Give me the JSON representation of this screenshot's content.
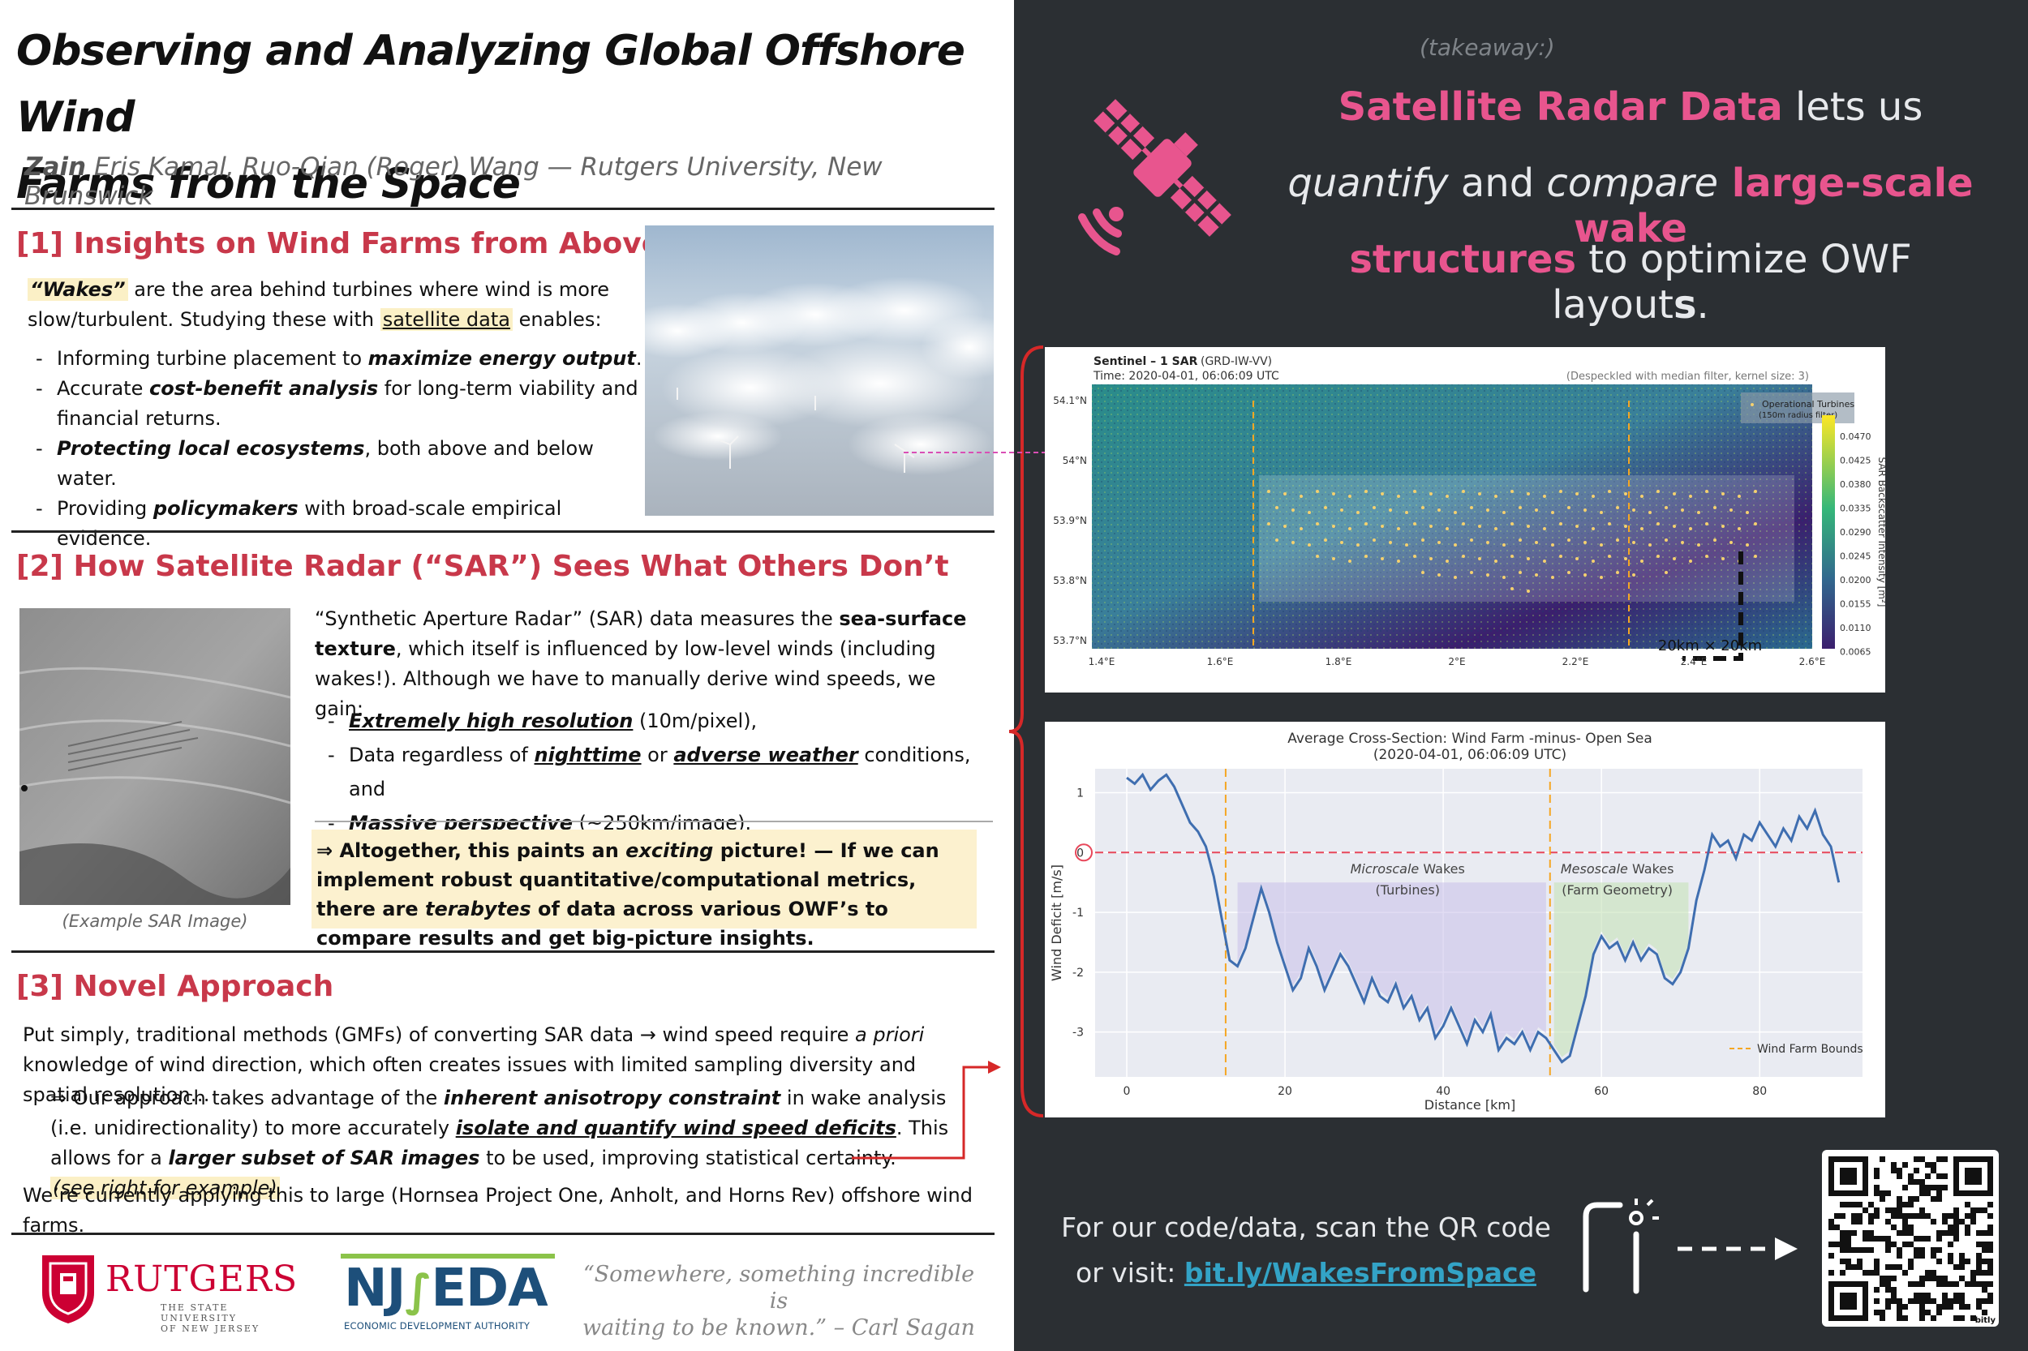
{
  "poster": {
    "title_line1": "Observing and Analyzing Global Offshore Wind",
    "title_line2": "Farms from the Space",
    "authors_lead": "Zain",
    "authors_rest": " Eris Kamal, Ruo-Qian (Roger) Wang — Rutgers University, New Brunswick"
  },
  "section1": {
    "title": "[1] Insights on Wind Farms from Above",
    "wakes_term": "“Wakes”",
    "intro_a": " are the area behind turbines where wind is more",
    "intro_b": "slow/turbulent. Studying these with ",
    "intro_link": "satellite data",
    "intro_c": " enables:",
    "b1_pre": "Informing turbine placement to ",
    "b1_em": "maximize energy output",
    "b1_post": ".",
    "b2_pre": "Accurate ",
    "b2_em": "cost-benefit analysis",
    "b2_post": " for long-term viability and financial returns.",
    "b3_em": "Protecting local ecosystems",
    "b3_post": ", both above and below water.",
    "b4_pre": "Providing ",
    "b4_em": "policymakers",
    "b4_post": " with broad-scale empirical evidence."
  },
  "section2": {
    "title": "[2] How Satellite Radar (“SAR”) Sees What Others Don’t",
    "p1_a": "“Synthetic Aperture Radar” (SAR) data measures the ",
    "p1_b": "sea-surface texture",
    "p1_c": ", which itself is influenced by low-level winds (including wakes!). Although we have to manually derive wind speeds, we gain:",
    "b1_em": "Extremely high resolution",
    "b1_post": " (10m/pixel),",
    "b2_pre": "Data regardless of ",
    "b2_em1": "nighttime",
    "b2_mid": " or ",
    "b2_em2": "adverse weather",
    "b2_post": " conditions, and",
    "b3_em": "Massive perspective",
    "b3_post": " (~250km/image).",
    "caption": "(Example  SAR Image)",
    "box_a": "⇒ Altogether, this paints an ",
    "box_em1": "exciting",
    "box_b": " picture! — If we can implement robust quantitative/computational metrics, there are ",
    "box_em2": "terabytes",
    "box_c": " of data across various OWF’s to compare results and get big-picture insights."
  },
  "section3": {
    "title": "[3] Novel Approach",
    "p1_a": "Put simply, traditional methods (GMFs) of converting SAR data → wind speed require ",
    "p1_em": "a priori",
    "p1_b": " knowledge of wind direction, which often creates issues with limited sampling diversity and spatial resolution…",
    "p2_a": "⇒ Our approach takes advantage of the ",
    "p2_em1": "inherent anisotropy constraint",
    "p2_b": " in wake analysis (i.e. unidirectionality) to more accurately ",
    "p2_em2": "isolate and quantify wind speed deficits",
    "p2_c": ". This allows for a ",
    "p2_em3": "larger subset of SAR images",
    "p2_d": " to be used, improving statistical certainty.",
    "p2_note": "(see right for example)",
    "p3": "We’re currently applying this to large (Hornsea Project One, Anholt, and Horns Rev) offshore wind farms."
  },
  "logos": {
    "rutgers": "RUTGERS",
    "rutgers_sub1": "THE STATE UNIVERSITY",
    "rutgers_sub2": "OF NEW JERSEY",
    "njeda_a": "NJ",
    "njeda_b": "EDA",
    "njeda_sub": "ECONOMIC DEVELOPMENT AUTHORITY"
  },
  "quote": {
    "line1": "“Somewhere, something incredible is",
    "line2": "waiting to be known.” – Carl Sagan"
  },
  "takeaway": {
    "label": "(takeaway:)",
    "l1_em": "Satellite Radar Data",
    "l1_rest": " lets us",
    "l2_em1": "quantify",
    "l2_mid": " and ",
    "l2_em2": "compare",
    "l2_pink": " large-scale wake",
    "l3_pink": "structures",
    "l3_rest": " to optimize OWF layout",
    "l3_s": "s",
    "l3_end": "."
  },
  "contact": {
    "line1": "For our code/data, scan the QR code",
    "line2_pre": "or visit: ",
    "link": "bit.ly/WakesFromSpace",
    "qr_brand": "bitly"
  },
  "sar_map": {
    "title_bold": "Sentinel – 1 SAR",
    "title_rest": " (GRD-IW-VV)",
    "time": "Time: 2020-04-01, 06:06:09 UTC",
    "note": "(Despeckled with median filter, kernel size: 3)",
    "legend1": "Operational Turbines",
    "legend2": "(150m radius filter)",
    "scale": "20km × 20km",
    "colorbar_label": "SAR Backscatter Intensity [m²]",
    "colorbar_ticks": [
      "0.0470",
      "0.0425",
      "0.0380",
      "0.0335",
      "0.0290",
      "0.0245",
      "0.0200",
      "0.0155",
      "0.0110",
      "0.0065"
    ],
    "lat_ticks": [
      "54.1°N",
      "54°N",
      "53.9°N",
      "53.8°N",
      "53.7°N"
    ],
    "lon_ticks": [
      "1.4°E",
      "1.6°E",
      "1.8°E",
      "2°E",
      "2.2°E",
      "2.4°E",
      "2.6°E"
    ],
    "colors": {
      "low": "#3b1f6d",
      "mid": "#2a8c8a",
      "high": "#9ad05a"
    }
  },
  "chart_data": {
    "type": "line",
    "title": "Average Cross-Section: Wind Farm -minus- Open Sea",
    "subtitle": "(2020-04-01, 06:06:09 UTC)",
    "xlabel": "Distance [km]",
    "ylabel": "Wind Deficit [m/s]",
    "xlim": [
      -4,
      93
    ],
    "ylim": [
      -3.75,
      1.4
    ],
    "x_ticks": [
      0,
      20,
      40,
      60,
      80
    ],
    "y_ticks": [
      1,
      0,
      -1,
      -2,
      -3
    ],
    "wind_farm_bounds": [
      12.5,
      53.5
    ],
    "legend": "Wind Farm Bounds",
    "annotations": [
      {
        "em": "Microscale",
        "text": " Wakes",
        "sub": "(Turbines)"
      },
      {
        "em": "Mesoscale",
        "text": " Wakes",
        "sub": "(Farm Geometry)"
      }
    ],
    "series": [
      {
        "color": "#3f6eb0",
        "x": [
          0,
          1,
          2,
          3,
          4,
          5,
          6,
          7,
          8,
          9,
          10,
          11,
          12,
          13,
          14,
          15,
          16,
          17,
          18,
          19,
          20,
          21,
          22,
          23,
          24,
          25,
          26,
          27,
          28,
          29,
          30,
          31,
          32,
          33,
          34,
          35,
          36,
          37,
          38,
          39,
          40,
          41,
          42,
          43,
          44,
          45,
          46,
          47,
          48,
          49,
          50,
          51,
          52,
          53,
          54,
          55,
          56,
          57,
          58,
          59,
          60,
          61,
          62,
          63,
          64,
          65,
          66,
          67,
          68,
          69,
          70,
          71,
          72,
          73,
          74,
          75,
          76,
          77,
          78,
          79,
          80,
          81,
          82,
          83,
          84,
          85,
          86,
          87,
          88,
          89,
          90
        ],
        "values": [
          1.25,
          1.15,
          1.3,
          1.05,
          1.2,
          1.3,
          1.1,
          0.8,
          0.5,
          0.35,
          0.1,
          -0.4,
          -1.1,
          -1.8,
          -1.9,
          -1.6,
          -1.1,
          -0.6,
          -1.0,
          -1.5,
          -1.9,
          -2.3,
          -2.1,
          -1.6,
          -1.9,
          -2.3,
          -2.0,
          -1.7,
          -1.9,
          -2.2,
          -2.5,
          -2.1,
          -2.4,
          -2.5,
          -2.2,
          -2.6,
          -2.4,
          -2.8,
          -2.6,
          -3.1,
          -2.9,
          -2.6,
          -2.9,
          -3.2,
          -2.8,
          -3.0,
          -2.7,
          -3.3,
          -3.1,
          -3.2,
          -3.0,
          -3.3,
          -3.0,
          -3.1,
          -3.3,
          -3.5,
          -3.4,
          -2.9,
          -2.4,
          -1.7,
          -1.4,
          -1.6,
          -1.5,
          -1.8,
          -1.5,
          -1.8,
          -1.6,
          -1.7,
          -2.1,
          -2.2,
          -2.0,
          -1.6,
          -0.8,
          -0.3,
          0.3,
          0.1,
          0.2,
          -0.1,
          0.3,
          0.2,
          0.5,
          0.3,
          0.1,
          0.4,
          0.2,
          0.6,
          0.4,
          0.7,
          0.3,
          0.1,
          -0.5
        ]
      }
    ]
  }
}
